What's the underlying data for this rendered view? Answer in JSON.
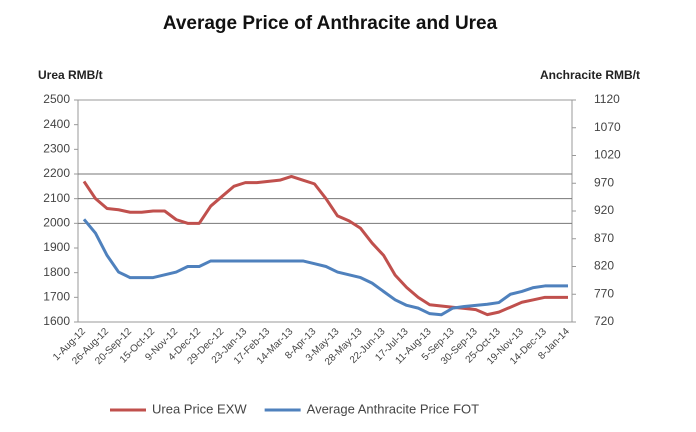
{
  "chart_data": {
    "type": "line",
    "title": "Average Price of Anthracite and Urea",
    "ylabel": "Urea RMB/t",
    "y2label": "Anchracite RMB/t",
    "categories": [
      "1-Aug-12",
      null,
      "26-Aug-12",
      null,
      "20-Sep-12",
      null,
      "15-Oct-12",
      null,
      "9-Nov-12",
      null,
      "4-Dec-12",
      null,
      "29-Dec-12",
      null,
      "23-Jan-13",
      null,
      "17-Feb-13",
      null,
      "14-Mar-13",
      null,
      "8-Apr-13",
      null,
      "3-May-13",
      null,
      "28-May-13",
      null,
      "22-Jun-13",
      null,
      "17-Jul-13",
      null,
      "11-Aug-13",
      null,
      "5-Sep-13",
      null,
      "30-Sep-13",
      null,
      "25-Oct-13",
      null,
      "19-Nov-13",
      null,
      "14-Dec-13",
      null,
      "8-Jan-14"
    ],
    "series": [
      {
        "name": "Urea Price EXW",
        "color": "#c0504d",
        "axis": "y",
        "values": [
          2170,
          2100,
          2060,
          2055,
          2045,
          2045,
          2050,
          2050,
          2015,
          2000,
          2000,
          2070,
          2110,
          2150,
          2165,
          2165,
          2170,
          2175,
          2190,
          2175,
          2160,
          2100,
          2030,
          2010,
          1980,
          1920,
          1870,
          1790,
          1740,
          1700,
          1670,
          1665,
          1660,
          1655,
          1650,
          1630,
          1640,
          1660,
          1680,
          1690,
          1700,
          1700,
          1700
        ]
      },
      {
        "name": "Average Anthracite Price FOT",
        "color": "#4f81bd",
        "axis": "y2",
        "values": [
          905,
          880,
          840,
          810,
          800,
          800,
          800,
          805,
          810,
          820,
          820,
          830,
          830,
          830,
          830,
          830,
          830,
          830,
          830,
          830,
          825,
          820,
          810,
          805,
          800,
          790,
          775,
          760,
          750,
          745,
          735,
          733,
          745,
          748,
          750,
          752,
          755,
          770,
          775,
          782,
          785,
          785,
          785
        ]
      }
    ],
    "ylim": [
      1600,
      2500
    ],
    "yticks": [
      1600,
      1700,
      1800,
      1900,
      2000,
      2100,
      2200,
      2300,
      2400,
      2500
    ],
    "y2lim": [
      720,
      1120
    ],
    "y2ticks": [
      720,
      770,
      820,
      870,
      920,
      970,
      1020,
      1070,
      1120
    ],
    "grid_lines": [
      2000,
      2100,
      2200
    ],
    "legend": "bottom"
  }
}
